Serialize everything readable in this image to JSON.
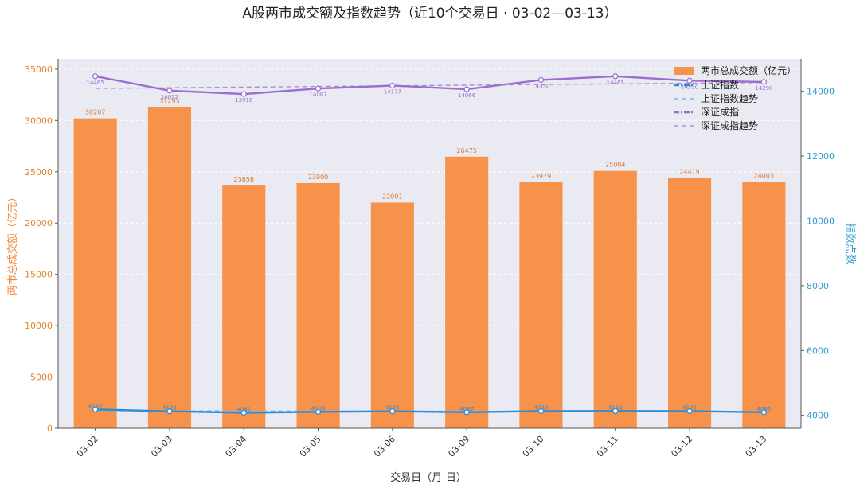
{
  "chart_data": {
    "type": "bar",
    "title": "A股两市成交额及指数趋势（近10个交易日 · 03-02—03-13）",
    "xlabel": "交易日（月-日）",
    "ylabel_left": "两市总成交额（亿元）",
    "ylabel_right": "指数点数",
    "categories": [
      "03-02",
      "03-03",
      "03-04",
      "03-05",
      "03-06",
      "03-09",
      "03-10",
      "03-11",
      "03-12",
      "03-13"
    ],
    "left_axis": {
      "ylim": [
        0,
        36000
      ],
      "ticks": [
        0,
        5000,
        10000,
        15000,
        20000,
        25000,
        30000,
        35000
      ]
    },
    "right_axis": {
      "ylim": [
        3600,
        15000
      ],
      "ticks": [
        4000,
        6000,
        8000,
        10000,
        12000,
        14000
      ]
    },
    "grid": true,
    "legend_position": "top-right",
    "series": [
      {
        "name": "两市总成交额（亿元）",
        "type": "bar",
        "axis": "left",
        "color": "#f7924a",
        "values": [
          30207,
          31295,
          23658,
          23900,
          22001,
          26475,
          23979,
          25084,
          24419,
          24003
        ],
        "labels": [
          "30207",
          "31295",
          "23658",
          "23900",
          "22001",
          "26475",
          "23979",
          "25084",
          "24419",
          "24003"
        ]
      },
      {
        "name": "上证指数",
        "type": "line",
        "axis": "right",
        "color": "#2e8bd6",
        "values": [
          4182,
          4123,
          4082,
          4108,
          4124,
          4097,
          4130,
          4133,
          4129,
          4095
        ],
        "labels": [
          "4182",
          "4123",
          "4082",
          "4108",
          "4124",
          "4097",
          "4130",
          "4133",
          "4129",
          "4095"
        ]
      },
      {
        "name": "上证指数趋势",
        "type": "trend",
        "axis": "right",
        "color": "#7ab8e6",
        "values": [
          4140,
          4137,
          4134,
          4131,
          4128,
          4125,
          4122,
          4119,
          4116,
          4113
        ]
      },
      {
        "name": "深证成指",
        "type": "line",
        "axis": "right",
        "color": "#9b6fcf",
        "values": [
          14465,
          14022,
          13916,
          14087,
          14177,
          14066,
          14350,
          14465,
          14330,
          14290
        ],
        "labels": [
          "14465",
          "14022",
          "13916",
          "14087",
          "14177",
          "14066",
          "14350",
          "14465",
          "14330",
          "14290"
        ]
      },
      {
        "name": "深证成指趋势",
        "type": "trend",
        "axis": "right",
        "color": "#a98ed6",
        "values": [
          14090,
          14110,
          14130,
          14150,
          14170,
          14190,
          14210,
          14230,
          14250,
          14270
        ]
      }
    ]
  }
}
